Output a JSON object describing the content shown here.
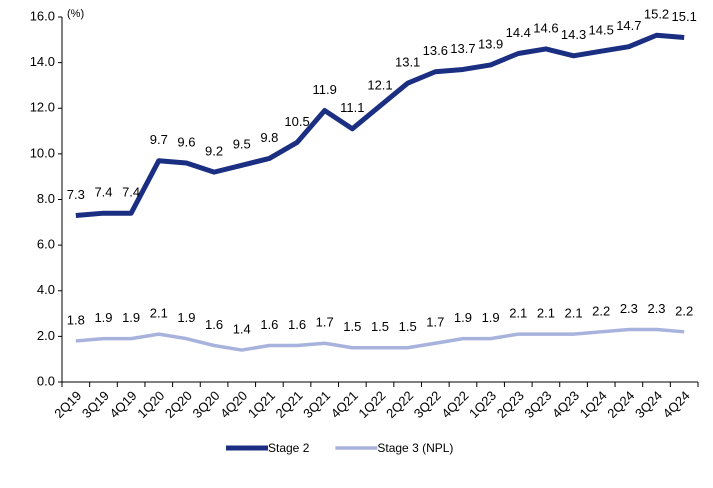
{
  "chart_data": {
    "type": "line",
    "unit_label": "(%)",
    "categories": [
      "2Q19",
      "3Q19",
      "4Q19",
      "1Q20",
      "2Q20",
      "3Q20",
      "4Q20",
      "1Q21",
      "2Q21",
      "3Q21",
      "4Q21",
      "1Q22",
      "2Q22",
      "3Q22",
      "4Q22",
      "1Q23",
      "2Q23",
      "3Q23",
      "4Q23",
      "1Q24",
      "2Q24",
      "3Q24",
      "4Q24"
    ],
    "series": [
      {
        "name": "Stage 2",
        "color": "#1b2f82",
        "values": [
          7.3,
          7.4,
          7.4,
          9.7,
          9.6,
          9.2,
          9.5,
          9.8,
          10.5,
          11.9,
          11.1,
          12.1,
          13.1,
          13.6,
          13.7,
          13.9,
          14.4,
          14.6,
          14.3,
          14.5,
          14.7,
          15.2,
          15.1
        ]
      },
      {
        "name": "Stage 3 (NPL)",
        "color": "#a7b3dc",
        "values": [
          1.8,
          1.9,
          1.9,
          2.1,
          1.9,
          1.6,
          1.4,
          1.6,
          1.6,
          1.7,
          1.5,
          1.5,
          1.5,
          1.7,
          1.9,
          1.9,
          2.1,
          2.1,
          2.1,
          2.2,
          2.3,
          2.3,
          2.2
        ]
      }
    ],
    "ylim": [
      0,
      16
    ],
    "yticks": [
      {
        "value": 0,
        "label": "0.0"
      },
      {
        "value": 2,
        "label": "2.0"
      },
      {
        "value": 4,
        "label": "4.0"
      },
      {
        "value": 6,
        "label": "6.0"
      },
      {
        "value": 8,
        "label": "8.0"
      },
      {
        "value": 10,
        "label": "10.0"
      },
      {
        "value": 12,
        "label": "12.0"
      },
      {
        "value": 14,
        "label": "14.0"
      },
      {
        "value": 16,
        "label": "16.0"
      }
    ],
    "legend": "bottom"
  }
}
